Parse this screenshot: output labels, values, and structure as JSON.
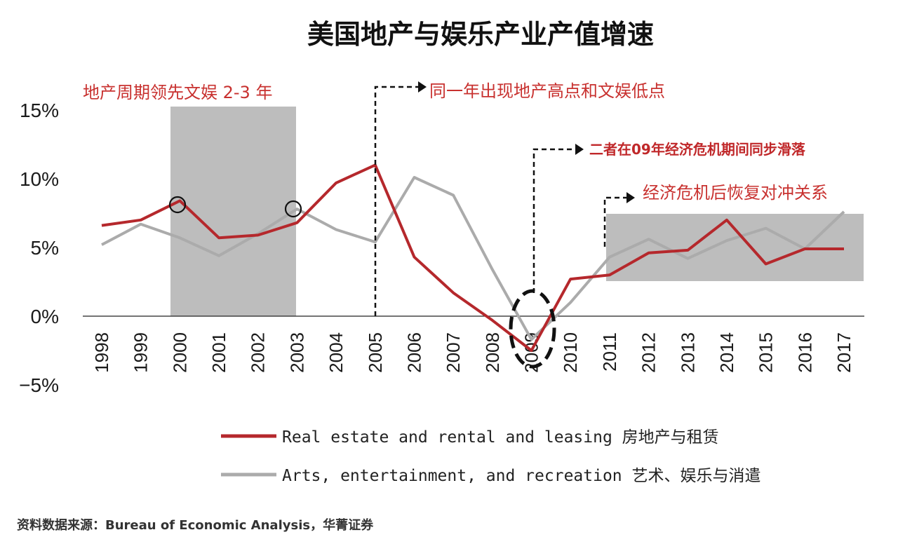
{
  "chart_data": {
    "type": "line",
    "title": "美国地产与娱乐产业产值增速",
    "categories": [
      "1998",
      "1999",
      "2000",
      "2001",
      "2002",
      "2003",
      "2004",
      "2005",
      "2006",
      "2007",
      "2008",
      "2009",
      "2010",
      "2011",
      "2012",
      "2013",
      "2014",
      "2015",
      "2016",
      "2017"
    ],
    "series": [
      {
        "name": "Real estate and rental and leasing 房地产与租赁",
        "color": "#b5282c",
        "values": [
          6.6,
          7.0,
          8.4,
          5.7,
          5.9,
          6.8,
          9.7,
          11.0,
          4.3,
          1.7,
          -0.3,
          -2.5,
          2.7,
          3.0,
          4.6,
          4.8,
          7.0,
          3.8,
          4.9,
          4.9
        ]
      },
      {
        "name": "Arts, entertainment, and recreation 艺术、娱乐与消遣",
        "color": "#ababab",
        "values": [
          5.2,
          6.7,
          5.7,
          4.4,
          6.0,
          7.8,
          6.3,
          5.4,
          10.1,
          8.8,
          3.4,
          -1.7,
          1.0,
          4.3,
          5.6,
          4.2,
          5.5,
          6.4,
          4.9,
          7.6
        ]
      }
    ],
    "y_ticks": [
      "15%",
      "10%",
      "5%",
      "0%",
      "−5%"
    ],
    "ylim": [
      -5,
      15
    ],
    "grid": false,
    "legend_position": "bottom",
    "annotations": {
      "lead": "地产周期领先文娱 2-3 年",
      "peak": "同一年出现地产高点和文娱低点",
      "crisis": "二者在09年经济危机期间同步滑落",
      "after": "经济危机后恢复对冲关系"
    },
    "source": "资料数据来源：Bureau of Economic Analysis，华菁证券"
  }
}
